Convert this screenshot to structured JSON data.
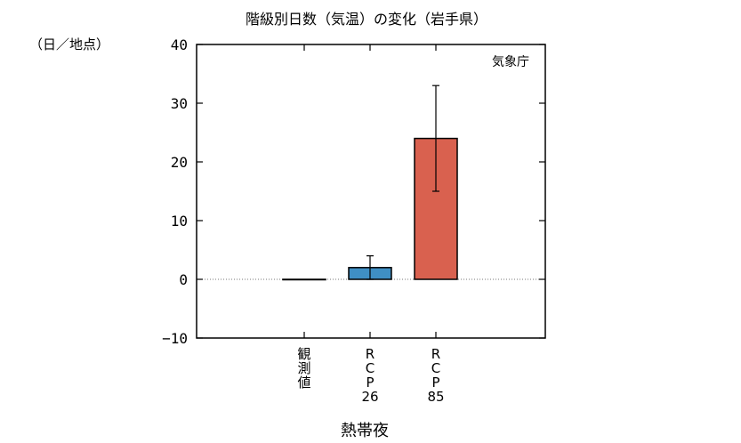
{
  "chart_data": {
    "type": "bar",
    "title": "階級別日数（気温）の変化（岩手県）",
    "ylabel": "（日／地点）",
    "xlabel": "熱帯夜",
    "credit": "気象庁",
    "ylim": [
      -10,
      40
    ],
    "yticks": [
      -10,
      0,
      10,
      20,
      30,
      40
    ],
    "grid": false,
    "categories": [
      [
        "観",
        "測",
        "値"
      ],
      [
        "R",
        "C",
        "P",
        "26"
      ],
      [
        "R",
        "C",
        "P",
        "85"
      ]
    ],
    "values": [
      0,
      2,
      24
    ],
    "error_low": [
      null,
      0,
      15
    ],
    "error_high": [
      null,
      4,
      33
    ],
    "colors": [
      "#ffffff",
      "#3f8fc4",
      "#d9614f"
    ]
  }
}
